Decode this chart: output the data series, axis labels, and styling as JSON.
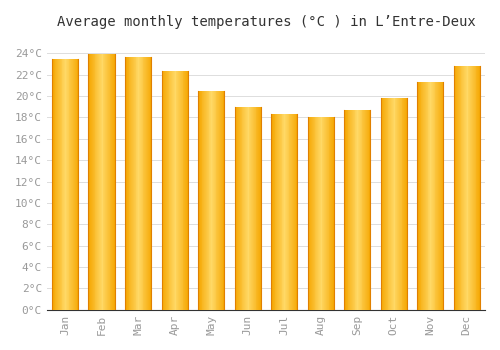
{
  "months": [
    "Jan",
    "Feb",
    "Mar",
    "Apr",
    "May",
    "Jun",
    "Jul",
    "Aug",
    "Sep",
    "Oct",
    "Nov",
    "Dec"
  ],
  "temperatures": [
    23.5,
    23.9,
    23.6,
    22.3,
    20.5,
    19.0,
    18.3,
    18.0,
    18.7,
    19.8,
    21.3,
    22.8
  ],
  "bar_color_center": "#FFD070",
  "bar_color_edge": "#F5A800",
  "background_color": "#FFFFFF",
  "grid_color": "#DDDDDD",
  "title": "Average monthly temperatures (°C ) in L’Entre-Deux",
  "title_fontsize": 10,
  "yticks": [
    0,
    2,
    4,
    6,
    8,
    10,
    12,
    14,
    16,
    18,
    20,
    22,
    24
  ],
  "ylim": [
    0,
    25.5
  ],
  "tick_color": "#999999",
  "tick_fontsize": 8,
  "font_family": "monospace"
}
